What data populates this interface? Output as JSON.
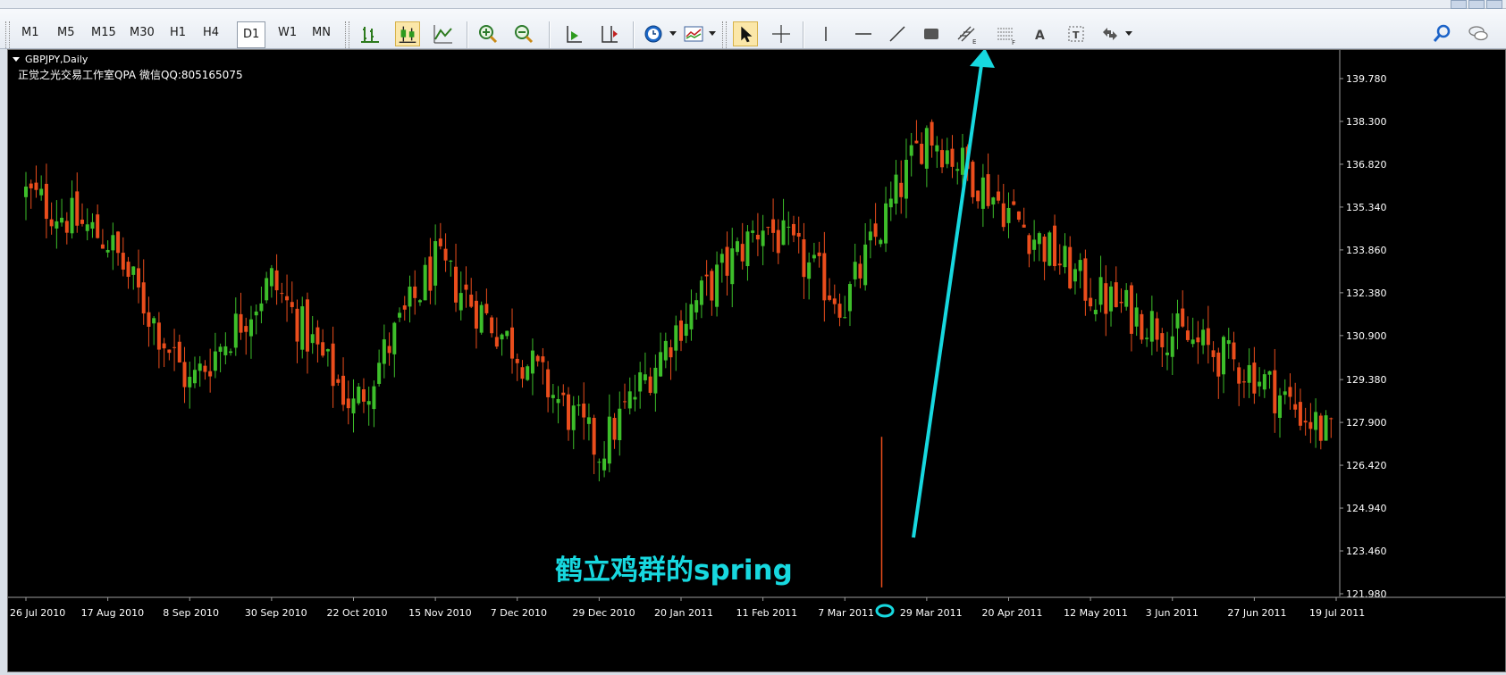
{
  "toolbar": {
    "timeframes": [
      "M1",
      "M5",
      "M15",
      "M30",
      "H1",
      "H4",
      "D1",
      "W1",
      "MN"
    ],
    "selected_timeframe": "D1"
  },
  "chart": {
    "symbol_label": "GBPJPY,Daily",
    "watermark": "正觉之光交易工作室QPA 微信QQ:805165075",
    "annotation": "鹤立鸡群的spring",
    "colors": {
      "background": "#000000",
      "bull": "#3dbe2a",
      "bear": "#ea4d1c",
      "annotation": "#17d8df"
    }
  },
  "chart_data": {
    "type": "candlestick",
    "title": "GBPJPY,Daily",
    "ylim": [
      121.98,
      139.78
    ],
    "yticks": [
      139.78,
      138.3,
      136.82,
      135.34,
      133.86,
      132.38,
      130.9,
      129.38,
      127.9,
      126.42,
      124.94,
      123.46,
      121.98
    ],
    "yticks_text": [
      "139.780",
      "138.300",
      "136.820",
      "135.340",
      "133.860",
      "132.380",
      "130.900",
      "129.380",
      "127.900",
      "126.420",
      "124.940",
      "123.460",
      "121.980"
    ],
    "xticks": [
      "26 Jul 2010",
      "17 Aug 2010",
      "8 Sep 2010",
      "30 Sep 2010",
      "22 Oct 2010",
      "15 Nov 2010",
      "7 Dec 2010",
      "29 Dec 2010",
      "20 Jan 2011",
      "11 Feb 2011",
      "7 Mar 2011",
      "29 Mar 2011",
      "20 Apr 2011",
      "12 May 2011",
      "3 Jun 2011",
      "27 Jun 2011",
      "19 Jul 2011"
    ],
    "close_path": [
      [
        "26 Jul 2010",
        135.8
      ],
      [
        "17 Aug 2010",
        134.2
      ],
      [
        "8 Sep 2010",
        129.2
      ],
      [
        "30 Sep 2010",
        132.8
      ],
      [
        "22 Oct 2010",
        128.4
      ],
      [
        "15 Nov 2010",
        133.4
      ],
      [
        "7 Dec 2010",
        130.4
      ],
      [
        "29 Dec 2010",
        126.9
      ],
      [
        "20 Jan 2011",
        131.4
      ],
      [
        "11 Feb 2011",
        134.8
      ],
      [
        "7 Mar 2011",
        132.0
      ],
      [
        "29 Mar 2011",
        138.0
      ],
      [
        "20 Apr 2011",
        135.2
      ],
      [
        "12 May 2011",
        132.4
      ],
      [
        "3 Jun 2011",
        131.0
      ],
      [
        "27 Jun 2011",
        129.6
      ],
      [
        "19 Jul 2011",
        127.2
      ]
    ],
    "spring_low": {
      "date": "17 Mar 2011",
      "low": 122.2
    },
    "grid": false,
    "legend": "none"
  }
}
